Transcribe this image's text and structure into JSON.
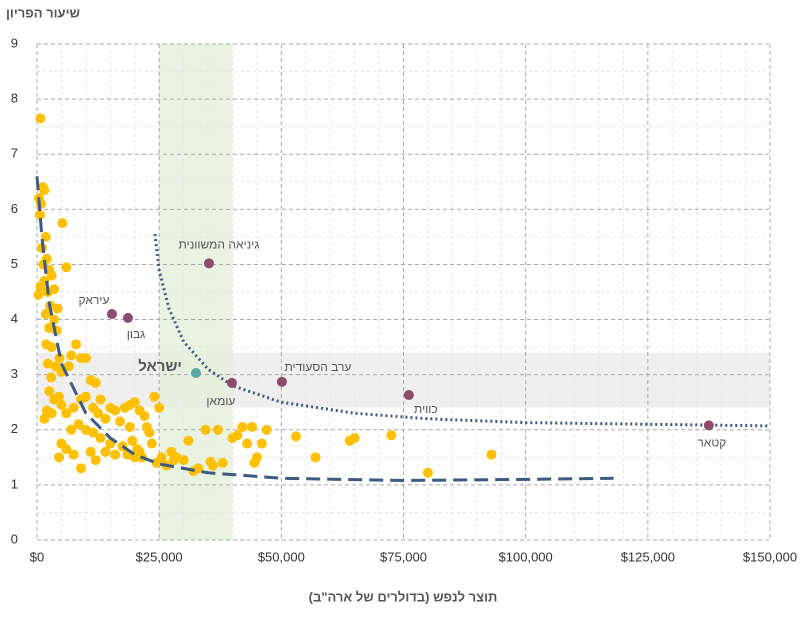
{
  "chart_data": {
    "type": "scatter",
    "y_axis_label": "שיעור הפריון",
    "x_axis_label": "תוצר לנפש (בדולרים של ארה\"ב)",
    "xlim": [
      0,
      150000
    ],
    "ylim": [
      0,
      9
    ],
    "xticks": [
      {
        "value": 0,
        "label": "$0"
      },
      {
        "value": 25000,
        "label": "$25,000"
      },
      {
        "value": 50000,
        "label": "$50,000"
      },
      {
        "value": 75000,
        "label": "$75,000"
      },
      {
        "value": 100000,
        "label": "$100,000"
      },
      {
        "value": 125000,
        "label": "$125,000"
      },
      {
        "value": 150000,
        "label": "$150,000"
      }
    ],
    "yticks": [
      0,
      1,
      2,
      3,
      4,
      5,
      6,
      7,
      8,
      9
    ],
    "x_minor_ticks": [
      5000,
      10000,
      15000,
      20000,
      30000,
      35000,
      40000,
      45000,
      55000,
      60000,
      65000,
      70000,
      80000,
      85000,
      90000,
      95000,
      105000,
      110000,
      115000,
      120000,
      130000,
      135000,
      140000,
      145000
    ],
    "y_minor_ticks": [
      0.5,
      1.5,
      2.5,
      3.5,
      4.5,
      5.5,
      6.5,
      7.5,
      8.5
    ],
    "grid": true,
    "highlight_x": [
      25000,
      40000
    ],
    "highlight_y": [
      2.4,
      3.4
    ],
    "points": {
      "color": "#ffc000",
      "x": [
        700,
        400,
        800,
        1200,
        1500,
        600,
        1000,
        1800,
        1300,
        2000,
        2500,
        3000,
        700,
        1500,
        2200,
        3500,
        300,
        2700,
        4200,
        1800,
        5200,
        6000,
        3500,
        2500,
        4000,
        1900,
        3000,
        4600,
        2200,
        3800,
        5000,
        2900,
        6500,
        7000,
        8000,
        9000,
        10000,
        2500,
        3500,
        4500,
        5000,
        2000,
        3000,
        1500,
        6000,
        7500,
        9000,
        10000,
        11000,
        12000,
        13000,
        11500,
        12500,
        14000,
        15000,
        16000,
        17000,
        18000,
        19000,
        20000,
        21000,
        22000,
        24000,
        25000,
        7000,
        8500,
        10000,
        11500,
        13000,
        5000,
        6000,
        7500,
        4500,
        9000,
        11000,
        12000,
        14000,
        15000,
        16000,
        17500,
        18500,
        19500,
        20500,
        21500,
        22500,
        23000,
        23500,
        24500,
        25500,
        26500,
        27500,
        28500,
        30000,
        31000,
        32000,
        33000,
        34500,
        36000,
        37000,
        38000,
        40000,
        41000,
        42000,
        43000,
        44000,
        44500,
        45000,
        46000,
        47000,
        35500,
        53000,
        57000,
        64000,
        65000,
        72500,
        80000,
        93000,
        28000,
        19000,
        20000,
        21000
      ],
      "y": [
        7.65,
        6.2,
        6.1,
        6.4,
        6.35,
        5.9,
        5.3,
        5.5,
        5.0,
        5.1,
        4.9,
        4.8,
        4.6,
        4.7,
        4.5,
        4.55,
        4.45,
        4.25,
        4.2,
        4.1,
        5.75,
        4.95,
        4.0,
        3.85,
        3.8,
        3.55,
        3.5,
        3.3,
        3.2,
        3.15,
        3.05,
        2.95,
        3.15,
        3.35,
        3.55,
        3.3,
        3.3,
        2.7,
        2.55,
        2.6,
        2.45,
        2.35,
        2.3,
        2.2,
        2.3,
        2.4,
        2.55,
        2.6,
        2.9,
        2.85,
        2.55,
        2.4,
        2.3,
        2.2,
        2.4,
        2.35,
        2.15,
        2.4,
        2.45,
        2.5,
        2.35,
        2.25,
        2.6,
        2.4,
        2.0,
        2.1,
        2.0,
        1.95,
        1.85,
        1.75,
        1.65,
        1.55,
        1.5,
        1.3,
        1.6,
        1.45,
        1.6,
        1.75,
        1.55,
        1.7,
        1.55,
        1.8,
        1.65,
        1.5,
        2.05,
        1.95,
        1.75,
        1.4,
        1.5,
        1.35,
        1.6,
        1.5,
        1.45,
        1.8,
        1.25,
        1.3,
        2.0,
        1.35,
        2.0,
        1.4,
        1.85,
        1.9,
        2.05,
        1.75,
        2.05,
        1.4,
        1.5,
        1.75,
        2.0,
        1.42,
        1.88,
        1.5,
        1.8,
        1.85,
        1.9,
        1.22,
        1.55,
        1.45,
        2.05,
        1.5,
        1.6
      ]
    },
    "labeled_points": {
      "labels": [
        "גיניאה המשוונית",
        "עיראק",
        "גבון",
        "ערב הסעודית",
        "עומאן",
        "כווית",
        "קטאר",
        "ישראל"
      ],
      "x": [
        35190,
        15340,
        18620,
        50120,
        39890,
        76100,
        137480,
        32530
      ],
      "y": [
        5.02,
        4.1,
        4.03,
        2.87,
        2.85,
        2.63,
        2.08,
        3.03
      ],
      "colors": [
        "#8e4b6e",
        "#8e4b6e",
        "#8e4b6e",
        "#8e4b6e",
        "#8e4b6e",
        "#8e4b6e",
        "#8e4b6e",
        "#5aa6a6"
      ]
    },
    "trendlines": [
      {
        "color": "#3d5a80",
        "style": "dashed",
        "x": [
          0,
          1000,
          2500,
          5000,
          10000,
          15000,
          20000,
          25000,
          35000,
          50000,
          75000,
          100000,
          118000
        ],
        "y": [
          6.6,
          5.5,
          4.3,
          3.2,
          2.3,
          1.85,
          1.55,
          1.38,
          1.22,
          1.12,
          1.08,
          1.1,
          1.12
        ]
      },
      {
        "color": "#3d5a80",
        "style": "dotted",
        "x": [
          24140,
          25000,
          27000,
          30000,
          35000,
          40000,
          50000,
          65000,
          80000,
          100000,
          125000,
          150000
        ],
        "y": [
          5.55,
          4.9,
          4.2,
          3.6,
          3.1,
          2.8,
          2.5,
          2.3,
          2.2,
          2.13,
          2.1,
          2.07
        ]
      }
    ]
  }
}
